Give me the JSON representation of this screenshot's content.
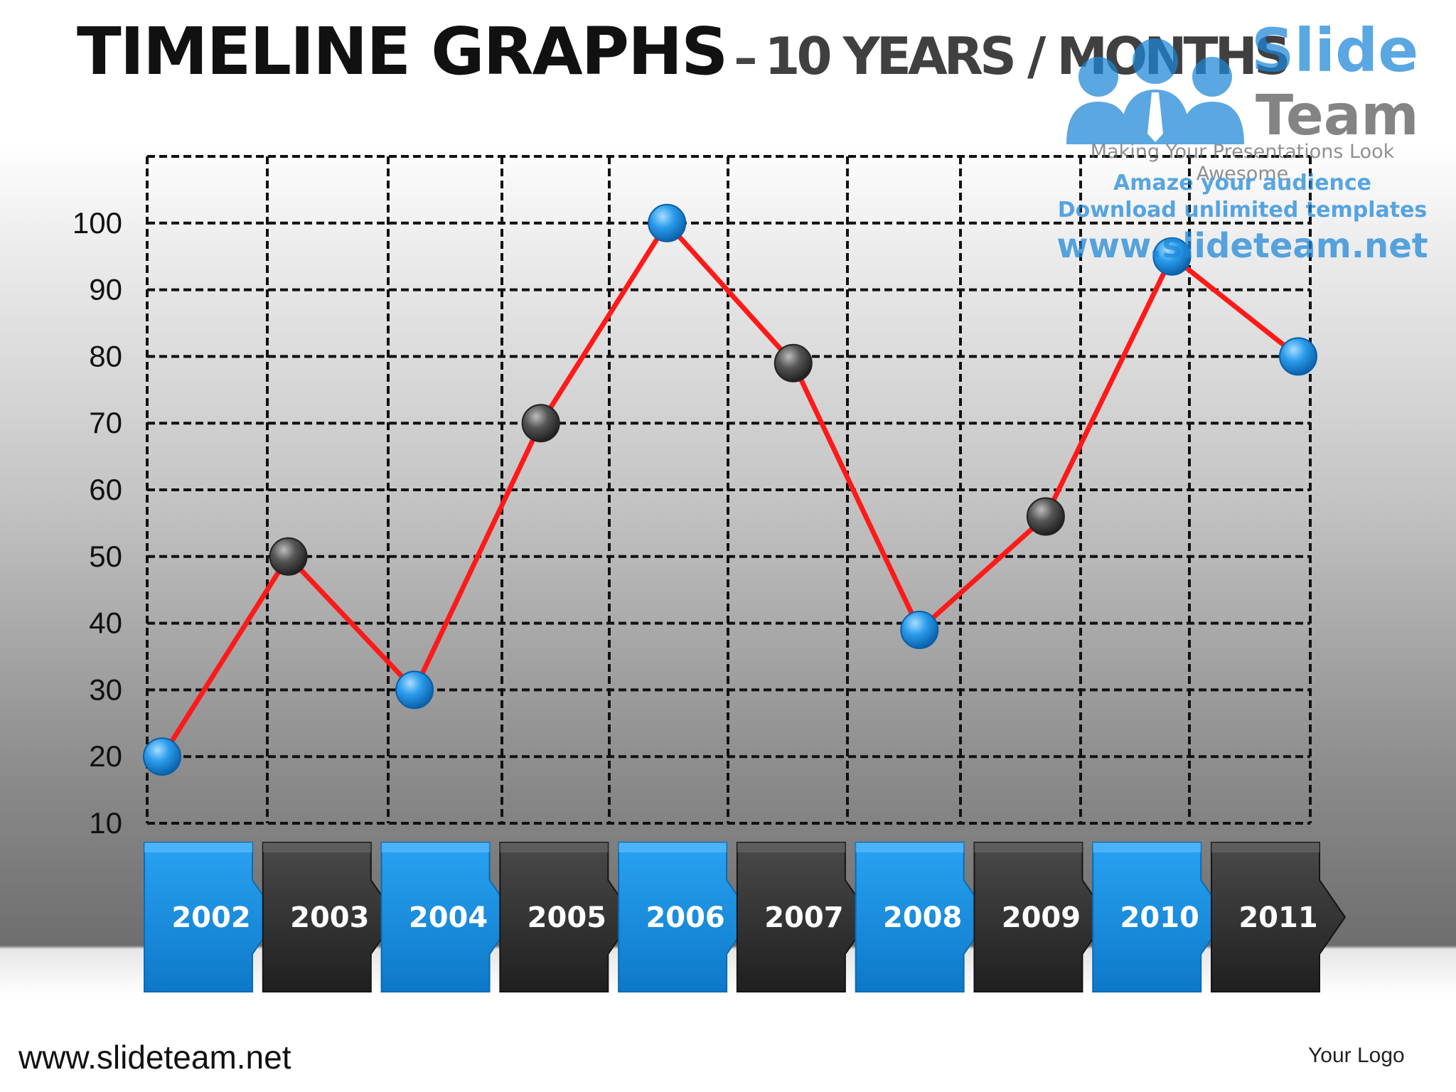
{
  "title": {
    "main": "TIMELINE  GRAPHS",
    "dash": "–",
    "sub": "10 YEARS / MONTHS"
  },
  "watermark": {
    "brand1": "Slide",
    "brand2": "Team",
    "tagline": "Making Your Presentations Look Awesome",
    "line1": "Amaze your audience",
    "line2": "Download unlimited templates",
    "url": "www.slideteam.net"
  },
  "footer": {
    "url": "www.slideteam.net",
    "logo": "Your Logo"
  },
  "colors": {
    "blue": "#1b8fe0",
    "dark": "#2e2e2e",
    "line": "#ff1a1a"
  },
  "chart_data": {
    "type": "line",
    "x": [
      "2002",
      "2003",
      "2004",
      "2005",
      "2006",
      "2007",
      "2008",
      "2009",
      "2010",
      "2011"
    ],
    "values": [
      20,
      50,
      30,
      70,
      100,
      79,
      39,
      56,
      95,
      80
    ],
    "yticks": [
      10,
      20,
      30,
      40,
      50,
      60,
      70,
      80,
      90,
      100
    ],
    "ylim": [
      10,
      110
    ],
    "grid": true,
    "point_colors": [
      "blue",
      "dark",
      "blue",
      "dark",
      "blue",
      "dark",
      "blue",
      "dark",
      "blue",
      "blue"
    ],
    "label_colors": [
      "blue",
      "dark",
      "blue",
      "dark",
      "blue",
      "dark",
      "blue",
      "dark",
      "blue",
      "dark"
    ]
  }
}
